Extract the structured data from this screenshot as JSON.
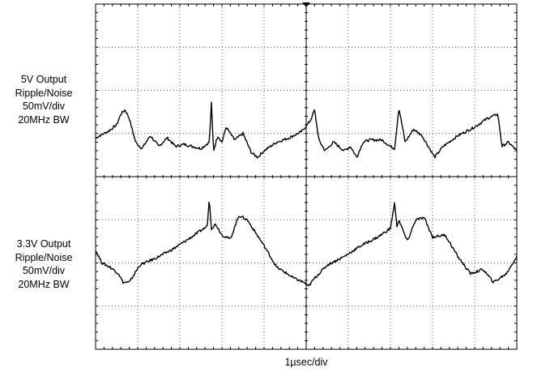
{
  "channels": [
    {
      "lines": [
        "5V Output",
        "Ripple/Noise",
        "50mV/div",
        "20MHz BW"
      ]
    },
    {
      "lines": [
        "3.3V Output",
        "Ripple/Noise",
        "50mV/div",
        "20MHz BW"
      ]
    }
  ],
  "timebase_label": "1µsec/div",
  "chart_data": {
    "type": "line",
    "title": "",
    "xlabel": "1µsec/div",
    "ylabel": "",
    "grid": true,
    "x_divisions": 10,
    "y_divisions": 8,
    "x_unit": "µs",
    "xlim": [
      0,
      10
    ],
    "series": [
      {
        "channel_label": "5V Output Ripple/Noise",
        "scale": "50mV/div",
        "bandwidth": "20MHz BW",
        "ylim_divisions": [
          -1.5,
          1.5
        ],
        "x": [
          0,
          0.3,
          0.5,
          0.6,
          0.7,
          0.8,
          0.95,
          1.1,
          1.3,
          1.5,
          1.7,
          1.9,
          2.1,
          2.3,
          2.5,
          2.7,
          2.75,
          2.8,
          2.9,
          3.0,
          3.1,
          3.3,
          3.5,
          3.7,
          3.85,
          4.0,
          4.3,
          4.6,
          4.9,
          5.1,
          5.2,
          5.25,
          5.3,
          5.45,
          5.65,
          5.9,
          6.05,
          6.2,
          6.35,
          6.5,
          6.8,
          7.0,
          7.1,
          7.2,
          7.35,
          7.55,
          7.75,
          7.9,
          8.05,
          8.25,
          8.6,
          9.0,
          9.3,
          9.55,
          9.65,
          9.8,
          10.0
        ],
        "values": [
          -0.1,
          0.05,
          0.2,
          0.45,
          0.55,
          0.35,
          -0.2,
          -0.35,
          -0.05,
          -0.3,
          -0.1,
          -0.3,
          -0.25,
          -0.3,
          -0.35,
          -0.2,
          0.7,
          -0.4,
          -0.05,
          -0.2,
          0.15,
          -0.15,
          0.0,
          -0.45,
          -0.55,
          -0.4,
          -0.2,
          -0.1,
          0.05,
          0.3,
          0.55,
          0.2,
          -0.15,
          -0.4,
          -0.2,
          -0.4,
          -0.3,
          -0.55,
          -0.2,
          -0.15,
          -0.15,
          -0.3,
          -0.35,
          0.6,
          -0.2,
          0.1,
          -0.05,
          -0.3,
          -0.55,
          -0.3,
          -0.05,
          0.15,
          0.35,
          0.45,
          -0.3,
          -0.2,
          -0.4
        ]
      },
      {
        "channel_label": "3.3V Output Ripple/Noise",
        "scale": "50mV/div",
        "bandwidth": "20MHz BW",
        "ylim_divisions": [
          -1.5,
          1.5
        ],
        "x": [
          0,
          0.15,
          0.35,
          0.55,
          0.65,
          0.8,
          1.05,
          1.4,
          1.8,
          2.2,
          2.5,
          2.65,
          2.7,
          2.75,
          2.85,
          3.0,
          3.2,
          3.4,
          3.6,
          3.8,
          4.0,
          4.3,
          4.55,
          4.7,
          4.95,
          5.05,
          5.2,
          5.5,
          5.9,
          6.3,
          6.7,
          7.0,
          7.1,
          7.15,
          7.2,
          7.4,
          7.6,
          7.8,
          8.0,
          8.3,
          8.6,
          8.9,
          9.2,
          9.45,
          9.6,
          9.75,
          10.0
        ],
        "values": [
          -0.2,
          -0.5,
          -0.6,
          -0.75,
          -0.95,
          -0.95,
          -0.55,
          -0.4,
          -0.2,
          0.05,
          0.25,
          0.35,
          1.0,
          0.3,
          0.4,
          0.15,
          0.05,
          0.6,
          0.5,
          0.2,
          -0.1,
          -0.6,
          -0.75,
          -0.85,
          -0.95,
          -1.05,
          -0.85,
          -0.55,
          -0.35,
          -0.1,
          0.1,
          0.3,
          0.9,
          0.35,
          0.5,
          0.0,
          0.5,
          0.55,
          0.1,
          0.15,
          -0.35,
          -0.75,
          -0.65,
          -0.95,
          -0.85,
          -0.75,
          -0.35
        ]
      }
    ]
  }
}
